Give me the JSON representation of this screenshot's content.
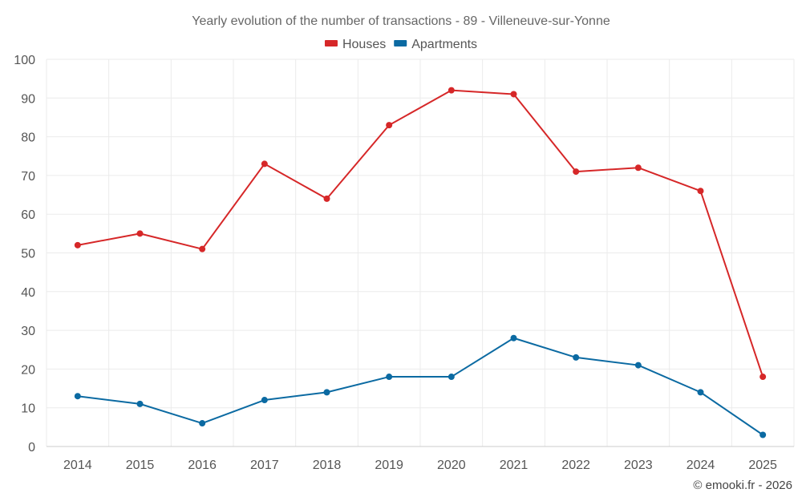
{
  "chart_data": {
    "type": "line",
    "title": "Yearly evolution of the number of transactions - 89 - Villeneuve-sur-Yonne",
    "xlabel": "",
    "ylabel": "",
    "categories": [
      "2014",
      "2015",
      "2016",
      "2017",
      "2018",
      "2019",
      "2020",
      "2021",
      "2022",
      "2023",
      "2024",
      "2025"
    ],
    "ylim": [
      0,
      100
    ],
    "yticks": [
      0,
      10,
      20,
      30,
      40,
      50,
      60,
      70,
      80,
      90,
      100
    ],
    "grid": true,
    "legend_position": "top-center",
    "series": [
      {
        "name": "Houses",
        "color": "#d62728",
        "values": [
          52,
          55,
          51,
          73,
          64,
          83,
          92,
          91,
          71,
          72,
          66,
          18
        ]
      },
      {
        "name": "Apartments",
        "color": "#0b6aa2",
        "values": [
          13,
          11,
          6,
          12,
          14,
          18,
          18,
          28,
          23,
          21,
          14,
          3
        ]
      }
    ]
  },
  "credit": "© emooki.fr - 2026"
}
